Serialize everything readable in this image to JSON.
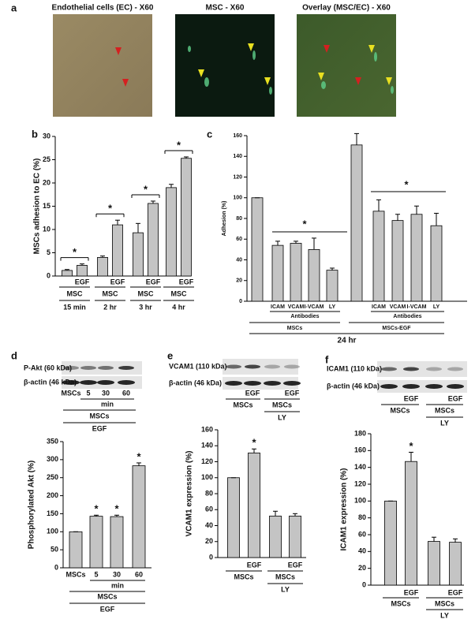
{
  "panel_a": {
    "panel": "a",
    "titles": [
      "Endothelial cells (EC) - X60",
      "MSC - X60",
      "Overlay (MSC/EC) - X60"
    ]
  },
  "chart_data": [
    {
      "type": "bar",
      "panel": "b",
      "ylabel": "MSCs adhesion to EC (%)",
      "categories": [
        null,
        "EGF",
        null,
        "EGF",
        null,
        "EGF",
        null,
        "EGF"
      ],
      "values": [
        1.2,
        2.3,
        4,
        11,
        9.3,
        15.6,
        19,
        25.3
      ],
      "errors": [
        0.2,
        0.3,
        0.3,
        1,
        2,
        0.5,
        0.7,
        0.3
      ],
      "ylim": [
        0,
        30
      ],
      "yticks": [
        0,
        5,
        10,
        15,
        20,
        25,
        30
      ],
      "color": "#c4c4c4",
      "groups": [
        "MSC",
        "MSC",
        "MSC",
        "MSC"
      ],
      "times": [
        "15 min",
        "2 hr",
        "3 hr",
        "4 hr"
      ],
      "annotations": [
        "*",
        "*",
        "*",
        "*"
      ]
    },
    {
      "type": "bar",
      "panel": "c",
      "ylabel": "Adhesion (%)",
      "categories": [
        null,
        "ICAM",
        "VCAM",
        "I-VCAM",
        "LY",
        null,
        "ICAM",
        "VCAM",
        "I-VCAM",
        "LY"
      ],
      "values": [
        100,
        54,
        56,
        50,
        30,
        151,
        87,
        78,
        84,
        73
      ],
      "errors": [
        0,
        4,
        2,
        11,
        2,
        11,
        11,
        6,
        8,
        12
      ],
      "ylim": [
        0,
        160
      ],
      "yticks": [
        0,
        20,
        40,
        60,
        80,
        100,
        120,
        140,
        160
      ],
      "color": "#c4c4c4",
      "subgroups": [
        "Antibodies",
        "Antibodies"
      ],
      "groups": [
        "MSCs",
        "MSCs-EGF"
      ],
      "time": "24 hr",
      "annotations": [
        "*",
        "*"
      ]
    },
    {
      "type": "bar",
      "panel": "d",
      "blot_labels": [
        "P-Akt (60 kDa)",
        "β-actin (46 kDa)"
      ],
      "ylabel": "Phosphorylated Akt (%)",
      "categories": [
        "MSCs",
        "5",
        "30",
        "60"
      ],
      "values": [
        100,
        143,
        142,
        283
      ],
      "errors": [
        0,
        3,
        4,
        8
      ],
      "ylim": [
        0,
        350
      ],
      "yticks": [
        0,
        50,
        100,
        150,
        200,
        250,
        300,
        350
      ],
      "color": "#c4c4c4",
      "unit": "min",
      "group": "MSCs",
      "treatment": "EGF",
      "annotations": [
        "*",
        "*",
        "*"
      ]
    },
    {
      "type": "bar",
      "panel": "e",
      "blot_labels": [
        "VCAM1 (110 kDa)",
        "β-actin (46 kDa)"
      ],
      "ylabel": "VCAM1 expression (%)",
      "categories": [
        null,
        "EGF",
        null,
        "EGF"
      ],
      "values": [
        100,
        131,
        52,
        52
      ],
      "errors": [
        0,
        5,
        6,
        3
      ],
      "ylim": [
        0,
        160
      ],
      "yticks": [
        0,
        20,
        40,
        60,
        80,
        100,
        120,
        140,
        160
      ],
      "color": "#c4c4c4",
      "groups": [
        "MSCs",
        "MSCs"
      ],
      "inhibitor": "LY",
      "annotations": [
        "*"
      ]
    },
    {
      "type": "bar",
      "panel": "f",
      "blot_labels": [
        "ICAM1 (110 kDa)",
        "β-actin (46 kDa)"
      ],
      "ylabel": "ICAM1 expression (%)",
      "categories": [
        null,
        "EGF",
        null,
        "EGF"
      ],
      "values": [
        100,
        147,
        52,
        51
      ],
      "errors": [
        0,
        11,
        5,
        4
      ],
      "ylim": [
        0,
        180
      ],
      "yticks": [
        0,
        20,
        40,
        60,
        80,
        100,
        120,
        140,
        160,
        180
      ],
      "color": "#c4c4c4",
      "groups": [
        "MSCs",
        "MSCs"
      ],
      "inhibitor": "LY",
      "annotations": [
        "*"
      ]
    }
  ]
}
